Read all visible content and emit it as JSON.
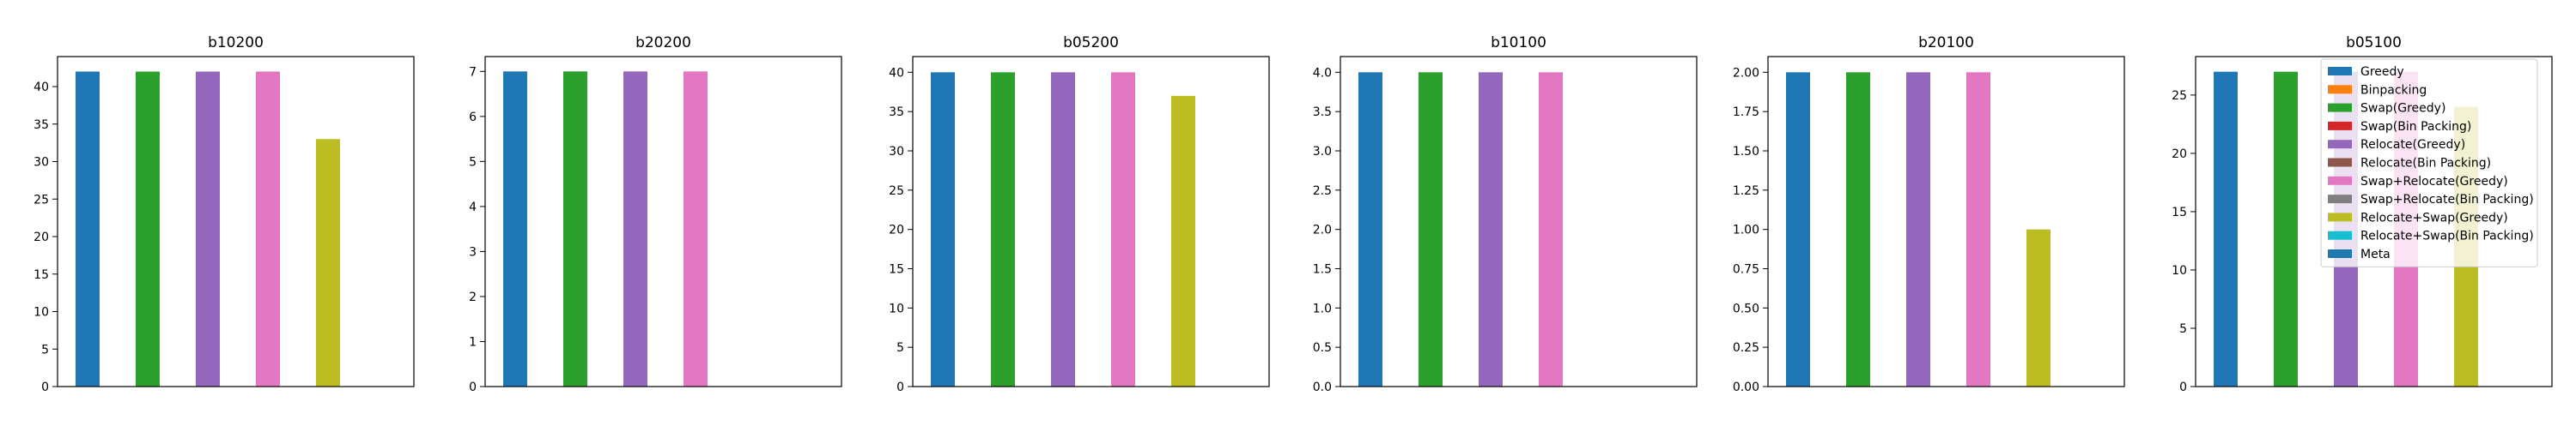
{
  "chart_data": [
    {
      "type": "bar",
      "title": "b10200",
      "xlabel": "",
      "ylabel": "",
      "ylim": [
        0,
        44
      ],
      "yticks": [
        0,
        5,
        10,
        15,
        20,
        25,
        30,
        35,
        40
      ],
      "ytick_labels": [
        "0",
        "5",
        "10",
        "15",
        "20",
        "25",
        "30",
        "35",
        "40"
      ],
      "series": [
        {
          "name": "Greedy",
          "value": 42
        },
        {
          "name": "Binpacking",
          "value": 0
        },
        {
          "name": "Swap(Greedy)",
          "value": 42
        },
        {
          "name": "Swap(Bin Packing)",
          "value": 0
        },
        {
          "name": "Relocate(Greedy)",
          "value": 42
        },
        {
          "name": "Relocate(Bin Packing)",
          "value": 0
        },
        {
          "name": "Swap+Relocate(Greedy)",
          "value": 42
        },
        {
          "name": "Swap+Relocate(Bin Packing)",
          "value": 0
        },
        {
          "name": "Relocate+Swap(Greedy)",
          "value": 33
        },
        {
          "name": "Relocate+Swap(Bin Packing)",
          "value": 0
        },
        {
          "name": "Meta",
          "value": 0
        }
      ]
    },
    {
      "type": "bar",
      "title": "b20200",
      "xlabel": "",
      "ylabel": "",
      "ylim": [
        0,
        7.33
      ],
      "yticks": [
        0,
        1,
        2,
        3,
        4,
        5,
        6,
        7
      ],
      "ytick_labels": [
        "0",
        "1",
        "2",
        "3",
        "4",
        "5",
        "6",
        "7"
      ],
      "series": [
        {
          "name": "Greedy",
          "value": 7
        },
        {
          "name": "Binpacking",
          "value": 0
        },
        {
          "name": "Swap(Greedy)",
          "value": 7
        },
        {
          "name": "Swap(Bin Packing)",
          "value": 0
        },
        {
          "name": "Relocate(Greedy)",
          "value": 7
        },
        {
          "name": "Relocate(Bin Packing)",
          "value": 0
        },
        {
          "name": "Swap+Relocate(Greedy)",
          "value": 7
        },
        {
          "name": "Swap+Relocate(Bin Packing)",
          "value": 0
        },
        {
          "name": "Relocate+Swap(Greedy)",
          "value": 0
        },
        {
          "name": "Relocate+Swap(Bin Packing)",
          "value": 0
        },
        {
          "name": "Meta",
          "value": 0
        }
      ]
    },
    {
      "type": "bar",
      "title": "b05200",
      "xlabel": "",
      "ylabel": "",
      "ylim": [
        0,
        42
      ],
      "yticks": [
        0,
        5,
        10,
        15,
        20,
        25,
        30,
        35,
        40
      ],
      "ytick_labels": [
        "0",
        "5",
        "10",
        "15",
        "20",
        "25",
        "30",
        "35",
        "40"
      ],
      "series": [
        {
          "name": "Greedy",
          "value": 40
        },
        {
          "name": "Binpacking",
          "value": 0
        },
        {
          "name": "Swap(Greedy)",
          "value": 40
        },
        {
          "name": "Swap(Bin Packing)",
          "value": 0
        },
        {
          "name": "Relocate(Greedy)",
          "value": 40
        },
        {
          "name": "Relocate(Bin Packing)",
          "value": 0
        },
        {
          "name": "Swap+Relocate(Greedy)",
          "value": 40
        },
        {
          "name": "Swap+Relocate(Bin Packing)",
          "value": 0
        },
        {
          "name": "Relocate+Swap(Greedy)",
          "value": 37
        },
        {
          "name": "Relocate+Swap(Bin Packing)",
          "value": 0
        },
        {
          "name": "Meta",
          "value": 0
        }
      ]
    },
    {
      "type": "bar",
      "title": "b10100",
      "xlabel": "",
      "ylabel": "",
      "ylim": [
        0,
        4.2
      ],
      "yticks": [
        0,
        0.5,
        1,
        1.5,
        2,
        2.5,
        3,
        3.5,
        4
      ],
      "ytick_labels": [
        "0.0",
        "0.5",
        "1.0",
        "1.5",
        "2.0",
        "2.5",
        "3.0",
        "3.5",
        "4.0"
      ],
      "series": [
        {
          "name": "Greedy",
          "value": 4
        },
        {
          "name": "Binpacking",
          "value": 0
        },
        {
          "name": "Swap(Greedy)",
          "value": 4
        },
        {
          "name": "Swap(Bin Packing)",
          "value": 0
        },
        {
          "name": "Relocate(Greedy)",
          "value": 4
        },
        {
          "name": "Relocate(Bin Packing)",
          "value": 0
        },
        {
          "name": "Swap+Relocate(Greedy)",
          "value": 4
        },
        {
          "name": "Swap+Relocate(Bin Packing)",
          "value": 0
        },
        {
          "name": "Relocate+Swap(Greedy)",
          "value": 0
        },
        {
          "name": "Relocate+Swap(Bin Packing)",
          "value": 0
        },
        {
          "name": "Meta",
          "value": 0
        }
      ]
    },
    {
      "type": "bar",
      "title": "b20100",
      "xlabel": "",
      "ylabel": "",
      "ylim": [
        0,
        2.1
      ],
      "yticks": [
        0,
        0.25,
        0.5,
        0.75,
        1,
        1.25,
        1.5,
        1.75,
        2
      ],
      "ytick_labels": [
        "0.00",
        "0.25",
        "0.50",
        "0.75",
        "1.00",
        "1.25",
        "1.50",
        "1.75",
        "2.00"
      ],
      "series": [
        {
          "name": "Greedy",
          "value": 2
        },
        {
          "name": "Binpacking",
          "value": 0
        },
        {
          "name": "Swap(Greedy)",
          "value": 2
        },
        {
          "name": "Swap(Bin Packing)",
          "value": 0
        },
        {
          "name": "Relocate(Greedy)",
          "value": 2
        },
        {
          "name": "Relocate(Bin Packing)",
          "value": 0
        },
        {
          "name": "Swap+Relocate(Greedy)",
          "value": 2
        },
        {
          "name": "Swap+Relocate(Bin Packing)",
          "value": 0
        },
        {
          "name": "Relocate+Swap(Greedy)",
          "value": 1
        },
        {
          "name": "Relocate+Swap(Bin Packing)",
          "value": 0
        },
        {
          "name": "Meta",
          "value": 0
        }
      ]
    },
    {
      "type": "bar",
      "title": "b05100",
      "xlabel": "",
      "ylabel": "",
      "ylim": [
        0,
        28.3
      ],
      "yticks": [
        0,
        5,
        10,
        15,
        20,
        25
      ],
      "ytick_labels": [
        "0",
        "5",
        "10",
        "15",
        "20",
        "25"
      ],
      "legend_position": "top-right",
      "series": [
        {
          "name": "Greedy",
          "value": 27
        },
        {
          "name": "Binpacking",
          "value": 0
        },
        {
          "name": "Swap(Greedy)",
          "value": 27
        },
        {
          "name": "Swap(Bin Packing)",
          "value": 0
        },
        {
          "name": "Relocate(Greedy)",
          "value": 27
        },
        {
          "name": "Relocate(Bin Packing)",
          "value": 0
        },
        {
          "name": "Swap+Relocate(Greedy)",
          "value": 27
        },
        {
          "name": "Swap+Relocate(Bin Packing)",
          "value": 0
        },
        {
          "name": "Relocate+Swap(Greedy)",
          "value": 24
        },
        {
          "name": "Relocate+Swap(Bin Packing)",
          "value": 0
        },
        {
          "name": "Meta",
          "value": 0
        }
      ]
    }
  ],
  "legend": {
    "entries": [
      {
        "label": "Greedy",
        "color": "#1f77b4"
      },
      {
        "label": "Binpacking",
        "color": "#ff7f0e"
      },
      {
        "label": "Swap(Greedy)",
        "color": "#2ca02c"
      },
      {
        "label": "Swap(Bin Packing)",
        "color": "#d62728"
      },
      {
        "label": "Relocate(Greedy)",
        "color": "#9467bd"
      },
      {
        "label": "Relocate(Bin Packing)",
        "color": "#8c564b"
      },
      {
        "label": "Swap+Relocate(Greedy)",
        "color": "#e377c2"
      },
      {
        "label": "Swap+Relocate(Bin Packing)",
        "color": "#7f7f7f"
      },
      {
        "label": "Relocate+Swap(Greedy)",
        "color": "#bcbd22"
      },
      {
        "label": "Relocate+Swap(Bin Packing)",
        "color": "#17becf"
      },
      {
        "label": "Meta",
        "color": "#1f77b4"
      }
    ]
  }
}
